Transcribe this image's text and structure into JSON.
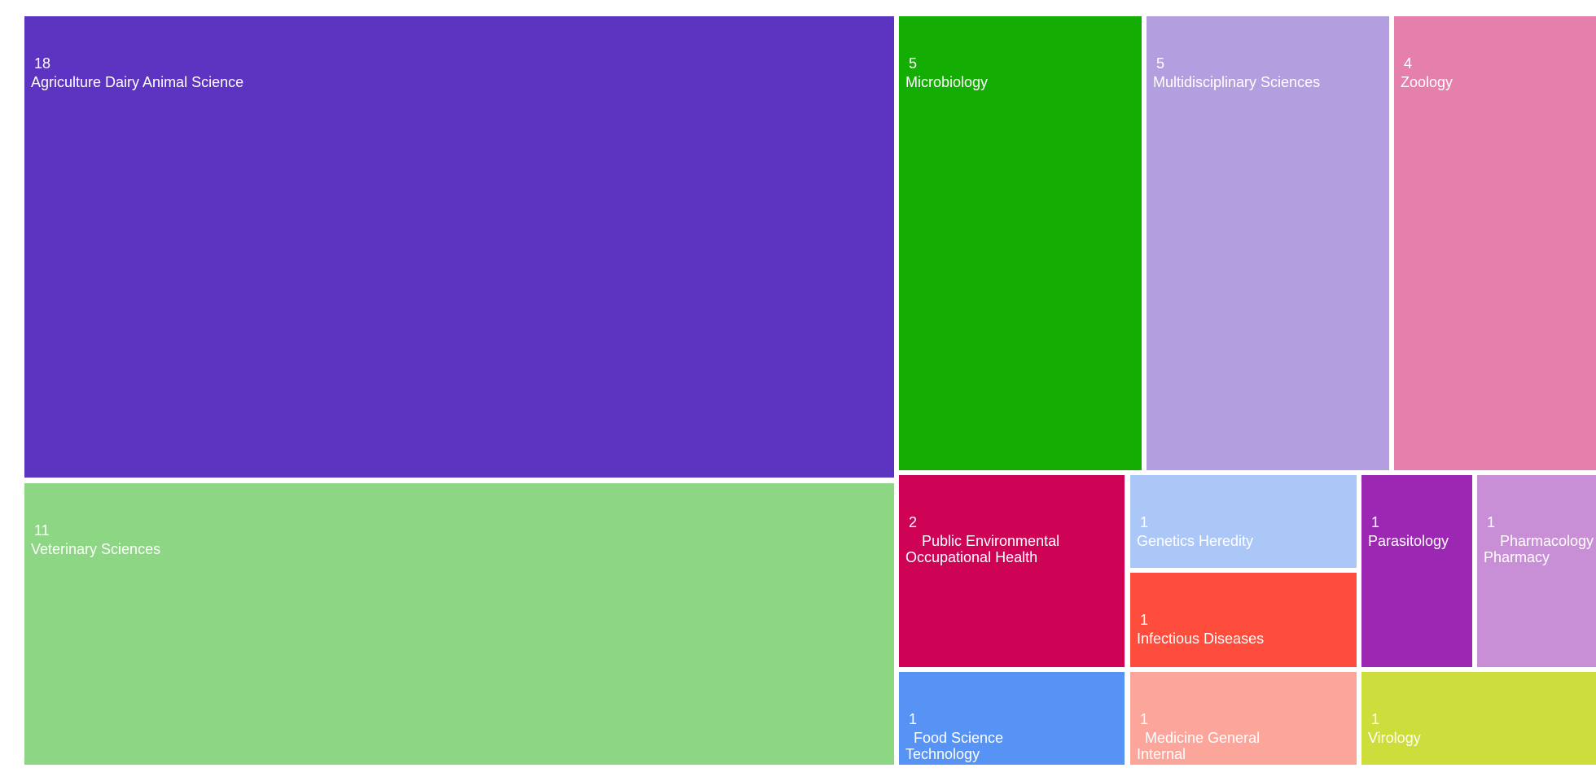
{
  "chart_data": {
    "type": "treemap",
    "tiles": [
      {
        "label": "Agriculture Dairy Animal Science",
        "value": 18,
        "color": "#5d33c2"
      },
      {
        "label": "Veterinary Sciences",
        "value": 11,
        "color": "#8dd683"
      },
      {
        "label": "Microbiology",
        "value": 5,
        "color": "#14ad04"
      },
      {
        "label": "Multidisciplinary Sciences",
        "value": 5,
        "color": "#b39fe0"
      },
      {
        "label": "Zoology",
        "value": 4,
        "color": "#e57fab"
      },
      {
        "label": "Public Environmental Occupational Health",
        "value": 2,
        "color": "#cf0356"
      },
      {
        "label": "Genetics Heredity",
        "value": 1,
        "color": "#abc7f7"
      },
      {
        "label": "Infectious Diseases",
        "value": 1,
        "color": "#ff4d3d"
      },
      {
        "label": "Parasitology",
        "value": 1,
        "color": "#9b27b3"
      },
      {
        "label": "Pharmacology Pharmacy",
        "value": 1,
        "color": "#c98fd6"
      },
      {
        "label": "Food Science Technology",
        "value": 1,
        "color": "#5793f5"
      },
      {
        "label": "Medicine General Internal",
        "value": 1,
        "color": "#fca59b"
      },
      {
        "label": "Virology",
        "value": 1,
        "color": "#cddd3b"
      }
    ]
  }
}
